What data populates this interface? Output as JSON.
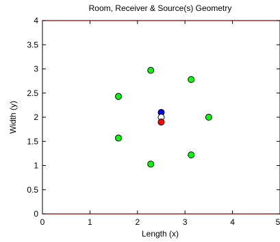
{
  "chart_data": {
    "type": "scatter",
    "title": "Room, Receiver & Source(s) Geometry",
    "xlabel": "Length (x)",
    "ylabel": "Width (y)",
    "xlim": [
      0,
      5
    ],
    "ylim": [
      0,
      4
    ],
    "grid": false,
    "x_ticks": [
      "0",
      "1",
      "2",
      "3",
      "4",
      "5"
    ],
    "y_ticks": [
      "0",
      "0.5",
      "1",
      "1.5",
      "2",
      "2.5",
      "3",
      "3.5",
      "4"
    ],
    "colors": {
      "source": "#00ff00",
      "receiver_top": "#0000ff",
      "receiver_center": "#ffffff",
      "receiver_bottom": "#ff0000",
      "room_boundary": "#8b0000"
    },
    "series": [
      {
        "color": "#00ff00",
        "points": [
          {
            "x": 2.28,
            "y": 2.97
          },
          {
            "x": 3.13,
            "y": 2.78
          },
          {
            "x": 1.6,
            "y": 2.43
          },
          {
            "x": 3.5,
            "y": 2.0
          },
          {
            "x": 1.6,
            "y": 1.57
          },
          {
            "x": 3.13,
            "y": 1.22
          },
          {
            "x": 2.28,
            "y": 1.03
          }
        ]
      },
      {
        "color": "#0000ff",
        "points": [
          {
            "x": 2.5,
            "y": 2.1
          }
        ]
      },
      {
        "color": "#ffffff",
        "points": [
          {
            "x": 2.5,
            "y": 2.0
          }
        ]
      },
      {
        "color": "#ff0000",
        "points": [
          {
            "x": 2.5,
            "y": 1.9
          }
        ]
      }
    ]
  }
}
